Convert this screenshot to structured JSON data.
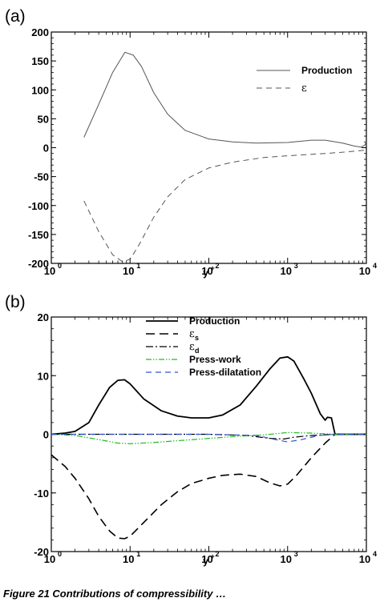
{
  "caption": "Figure 21   Contributions of compressibility … ",
  "chart_data": [
    {
      "type": "line",
      "panel_label": "(a)",
      "xlabel": "y+",
      "xscale": "log",
      "xlim": [
        1,
        10000
      ],
      "ylim": [
        -200,
        200
      ],
      "x_tick_labels": [
        "10",
        "0",
        "10",
        "1",
        "10",
        "2",
        "10",
        "3",
        "10",
        "4"
      ],
      "y_ticks": [
        -200,
        -150,
        -100,
        -50,
        0,
        50,
        100,
        150,
        200
      ],
      "legend": "top-right",
      "series": [
        {
          "name": "Production",
          "color": "#555555",
          "dash": "solid",
          "points": [
            [
              2.6,
              18
            ],
            [
              4,
              75
            ],
            [
              6,
              130
            ],
            [
              8.6,
              165
            ],
            [
              11,
              160
            ],
            [
              14,
              140
            ],
            [
              20,
              95
            ],
            [
              30,
              58
            ],
            [
              50,
              30
            ],
            [
              100,
              15
            ],
            [
              200,
              10
            ],
            [
              400,
              8
            ],
            [
              1000,
              9
            ],
            [
              2000,
              13
            ],
            [
              3000,
              13
            ],
            [
              5000,
              8
            ],
            [
              7000,
              3
            ],
            [
              8500,
              1
            ],
            [
              9500,
              4
            ],
            [
              10000,
              10
            ]
          ]
        },
        {
          "name": "ε",
          "color": "#555555",
          "dash": "dashed",
          "points": [
            [
              2.6,
              -92
            ],
            [
              4,
              -145
            ],
            [
              6,
              -185
            ],
            [
              8,
              -197
            ],
            [
              10,
              -193
            ],
            [
              13,
              -168
            ],
            [
              20,
              -120
            ],
            [
              30,
              -85
            ],
            [
              50,
              -55
            ],
            [
              100,
              -35
            ],
            [
              200,
              -25
            ],
            [
              500,
              -17
            ],
            [
              1000,
              -14
            ],
            [
              3000,
              -10
            ],
            [
              6000,
              -7
            ],
            [
              10000,
              -4
            ]
          ]
        }
      ]
    },
    {
      "type": "line",
      "panel_label": "(b)",
      "xlabel": "y+",
      "xscale": "log",
      "xlim": [
        1,
        10000
      ],
      "ylim": [
        -20,
        20
      ],
      "x_tick_labels": [
        "10",
        "0",
        "10",
        "1",
        "10",
        "2",
        "10",
        "3",
        "10",
        "4"
      ],
      "y_ticks": [
        -20,
        -10,
        0,
        10,
        20
      ],
      "legend": "top-center",
      "series": [
        {
          "name": "Production",
          "legend_sub": "",
          "color": "#000000",
          "dash": "solid",
          "width": 1.8,
          "points": [
            [
              1,
              0
            ],
            [
              1.5,
              0.2
            ],
            [
              2,
              0.5
            ],
            [
              3,
              2
            ],
            [
              4,
              5
            ],
            [
              5.5,
              8
            ],
            [
              7,
              9.2
            ],
            [
              8.5,
              9.3
            ],
            [
              10,
              8.6
            ],
            [
              15,
              6
            ],
            [
              25,
              4
            ],
            [
              40,
              3.1
            ],
            [
              60,
              2.8
            ],
            [
              100,
              2.8
            ],
            [
              150,
              3.3
            ],
            [
              250,
              5
            ],
            [
              400,
              8.2
            ],
            [
              600,
              11.2
            ],
            [
              800,
              13
            ],
            [
              1000,
              13.2
            ],
            [
              1200,
              12.5
            ],
            [
              1600,
              9.5
            ],
            [
              2000,
              7
            ],
            [
              2600,
              3.5
            ],
            [
              3000,
              2.4
            ],
            [
              3200,
              2.9
            ],
            [
              3600,
              2.8
            ],
            [
              4000,
              0
            ],
            [
              10000,
              0
            ]
          ]
        },
        {
          "name": "ε",
          "legend_sub": "s",
          "color": "#000000",
          "dash": "longdash",
          "width": 1.6,
          "points": [
            [
              1,
              -3.5
            ],
            [
              1.5,
              -5.5
            ],
            [
              2,
              -7.5
            ],
            [
              3,
              -11
            ],
            [
              4,
              -14
            ],
            [
              5.5,
              -16.5
            ],
            [
              7,
              -17.7
            ],
            [
              8.5,
              -17.8
            ],
            [
              10,
              -17.4
            ],
            [
              15,
              -15
            ],
            [
              25,
              -12
            ],
            [
              40,
              -9.8
            ],
            [
              60,
              -8.4
            ],
            [
              100,
              -7.5
            ],
            [
              150,
              -7
            ],
            [
              250,
              -6.8
            ],
            [
              400,
              -7.2
            ],
            [
              600,
              -8.3
            ],
            [
              800,
              -8.8
            ],
            [
              1000,
              -8.5
            ],
            [
              1300,
              -7
            ],
            [
              2000,
              -4
            ],
            [
              3000,
              -1.5
            ],
            [
              4000,
              0
            ],
            [
              10000,
              0
            ]
          ]
        },
        {
          "name": "ε",
          "legend_sub": "d",
          "color": "#000000",
          "dash": "dashdot",
          "width": 1.2,
          "points": [
            [
              1,
              0
            ],
            [
              100,
              0
            ],
            [
              300,
              -0.2
            ],
            [
              600,
              -0.7
            ],
            [
              900,
              -0.8
            ],
            [
              1200,
              -0.5
            ],
            [
              2000,
              -0.2
            ],
            [
              4000,
              0
            ],
            [
              10000,
              0
            ]
          ]
        },
        {
          "name": "Press-work",
          "legend_sub": "",
          "color": "#22bb22",
          "dash": "dashdotdot",
          "width": 1.2,
          "points": [
            [
              1,
              0
            ],
            [
              2,
              -0.2
            ],
            [
              4,
              -0.9
            ],
            [
              7,
              -1.5
            ],
            [
              10,
              -1.6
            ],
            [
              20,
              -1.4
            ],
            [
              50,
              -1
            ],
            [
              100,
              -0.7
            ],
            [
              200,
              -0.4
            ],
            [
              500,
              -0.1
            ],
            [
              1000,
              0.3
            ],
            [
              2000,
              0.2
            ],
            [
              4000,
              0
            ],
            [
              10000,
              0
            ]
          ]
        },
        {
          "name": "Press-dilatation",
          "legend_sub": "",
          "color": "#3355cc",
          "dash": "dashed",
          "width": 1.2,
          "points": [
            [
              1,
              0
            ],
            [
              100,
              0
            ],
            [
              400,
              -0.2
            ],
            [
              700,
              -0.9
            ],
            [
              1000,
              -1.3
            ],
            [
              1500,
              -0.9
            ],
            [
              2500,
              -0.2
            ],
            [
              4000,
              0
            ],
            [
              10000,
              0
            ]
          ]
        }
      ]
    }
  ]
}
